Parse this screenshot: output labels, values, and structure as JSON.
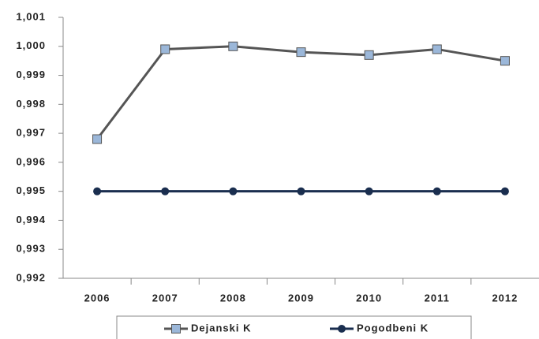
{
  "chart_data": {
    "type": "line",
    "categories": [
      "2006",
      "2007",
      "2008",
      "2009",
      "2010",
      "2011",
      "2012"
    ],
    "series": [
      {
        "name": "Dejanski K",
        "color": "#555555",
        "marker_color": "#9bb7d9",
        "marker": "square",
        "values": [
          0.9968,
          0.9999,
          1.0,
          0.9998,
          0.9997,
          0.9999,
          0.9995
        ]
      },
      {
        "name": "Pogodbeni K",
        "color": "#1a2e4f",
        "marker_color": "#1a2e4f",
        "marker": "circle",
        "values": [
          0.995,
          0.995,
          0.995,
          0.995,
          0.995,
          0.995,
          0.995
        ]
      }
    ],
    "ylim": [
      0.992,
      1.001
    ],
    "yticks": [
      {
        "value": 0.992,
        "label": "0,992"
      },
      {
        "value": 0.993,
        "label": "0,993"
      },
      {
        "value": 0.994,
        "label": "0,994"
      },
      {
        "value": 0.995,
        "label": "0,995"
      },
      {
        "value": 0.996,
        "label": "0,996"
      },
      {
        "value": 0.997,
        "label": "0,997"
      },
      {
        "value": 0.998,
        "label": "0,998"
      },
      {
        "value": 0.999,
        "label": "0,999"
      },
      {
        "value": 1.0,
        "label": "1,000"
      },
      {
        "value": 1.001,
        "label": "1,001"
      }
    ],
    "grid": false,
    "legend": "bottom"
  }
}
